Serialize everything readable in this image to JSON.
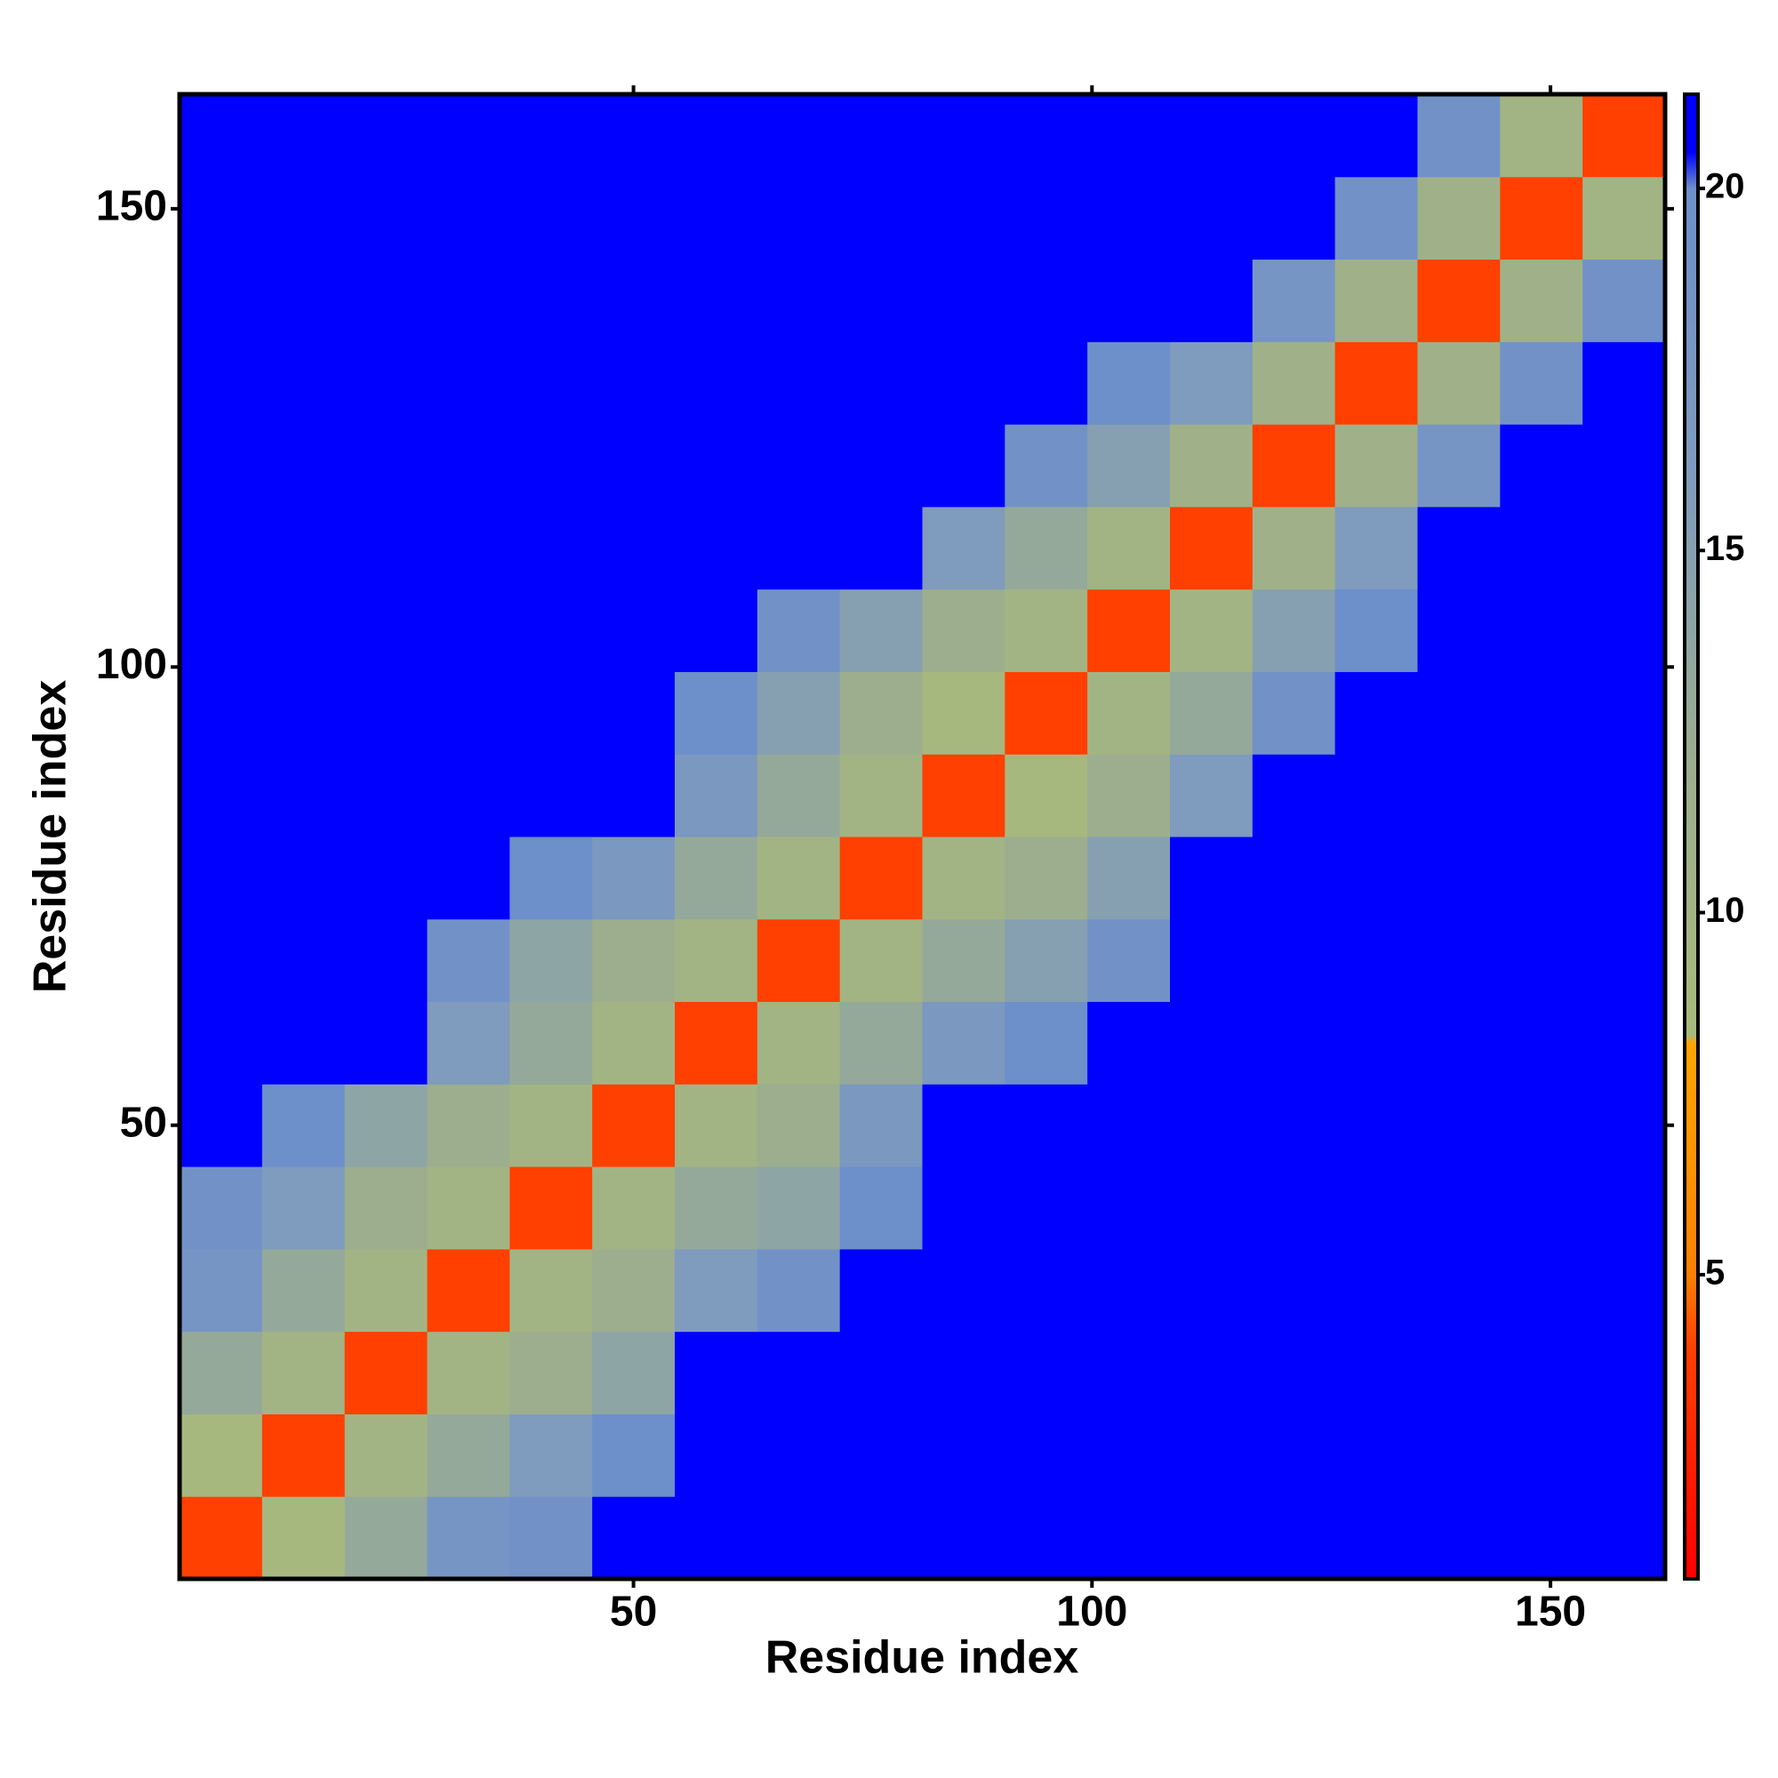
{
  "chart_data": {
    "type": "heatmap",
    "xlabel": "Residue index",
    "ylabel": "Residue index",
    "xbins": [
      0.5,
      9.5,
      18.5,
      27.5,
      36.5,
      45.5,
      54.5,
      63.5,
      72.5,
      81.5,
      90.5,
      99.5,
      108.5,
      117.5,
      126.5,
      135.5,
      144.5,
      153.5,
      162.5
    ],
    "ybins": [
      0.5,
      9.5,
      18.5,
      27.5,
      36.5,
      45.5,
      54.5,
      63.5,
      72.5,
      81.5,
      90.5,
      99.5,
      108.5,
      117.5,
      126.5,
      135.5,
      144.5,
      153.5,
      162.5
    ],
    "z": [
      [
        4,
        9,
        13,
        18,
        19,
        21,
        21,
        21,
        21,
        21,
        21,
        21,
        21,
        21,
        21,
        21,
        21,
        21
      ],
      [
        9,
        4,
        10,
        13,
        16,
        20,
        21,
        21,
        21,
        21,
        21,
        21,
        21,
        21,
        21,
        21,
        21,
        21
      ],
      [
        13,
        10,
        4,
        10,
        12,
        14,
        21,
        21,
        21,
        21,
        21,
        21,
        21,
        21,
        21,
        21,
        21,
        21
      ],
      [
        18,
        13,
        10,
        4,
        10,
        12,
        16,
        19,
        21,
        21,
        21,
        21,
        21,
        21,
        21,
        21,
        21,
        21
      ],
      [
        19,
        16,
        12,
        10,
        4,
        10,
        13,
        14,
        20,
        21,
        21,
        21,
        21,
        21,
        21,
        21,
        21,
        21
      ],
      [
        21,
        20,
        14,
        12,
        10,
        4,
        10,
        12,
        17,
        21,
        21,
        21,
        21,
        21,
        21,
        21,
        21,
        21
      ],
      [
        21,
        21,
        21,
        16,
        13,
        10,
        4,
        10,
        13,
        17,
        20,
        21,
        21,
        21,
        21,
        21,
        21,
        21
      ],
      [
        21,
        21,
        21,
        19,
        14,
        12,
        10,
        4,
        10,
        13,
        15,
        19,
        21,
        21,
        21,
        21,
        21,
        21
      ],
      [
        21,
        21,
        21,
        21,
        20,
        17,
        13,
        10,
        4,
        10,
        12,
        15,
        21,
        21,
        21,
        21,
        21,
        21
      ],
      [
        21,
        21,
        21,
        21,
        21,
        21,
        17,
        13,
        10,
        4,
        9,
        12,
        16,
        21,
        21,
        21,
        21,
        21
      ],
      [
        21,
        21,
        21,
        21,
        21,
        21,
        20,
        15,
        12,
        9,
        4,
        10,
        13,
        19,
        21,
        21,
        21,
        21
      ],
      [
        21,
        21,
        21,
        21,
        21,
        21,
        21,
        19,
        15,
        12,
        10,
        4,
        10,
        15,
        20,
        21,
        21,
        21
      ],
      [
        21,
        21,
        21,
        21,
        21,
        21,
        21,
        21,
        21,
        16,
        13,
        10,
        4,
        11,
        16,
        21,
        21,
        21
      ],
      [
        21,
        21,
        21,
        21,
        21,
        21,
        21,
        21,
        21,
        21,
        19,
        15,
        11,
        4,
        11,
        18,
        21,
        21
      ],
      [
        21,
        21,
        21,
        21,
        21,
        21,
        21,
        21,
        21,
        21,
        21,
        20,
        16,
        11,
        4,
        11,
        19,
        21
      ],
      [
        21,
        21,
        21,
        21,
        21,
        21,
        21,
        21,
        21,
        21,
        21,
        21,
        21,
        18,
        11,
        4,
        11,
        19
      ],
      [
        21,
        21,
        21,
        21,
        21,
        21,
        21,
        21,
        21,
        21,
        21,
        21,
        21,
        21,
        19,
        11,
        4,
        10
      ],
      [
        21,
        21,
        21,
        21,
        21,
        21,
        21,
        21,
        21,
        21,
        21,
        21,
        21,
        21,
        21,
        19,
        10,
        4
      ]
    ],
    "xlim": [
      0.5,
      162.5
    ],
    "ylim": [
      0.5,
      162.5
    ],
    "xticks": [
      50,
      100,
      150
    ],
    "yticks": [
      50,
      100,
      150
    ],
    "colorbar_lim": [
      0.8,
      21.3
    ],
    "colorbar_ticks": [
      5,
      10,
      15,
      20
    ],
    "colorscale": [
      {
        "value": 0.8,
        "color": "#ff0000"
      },
      {
        "value": 4,
        "color": "#ff4000"
      },
      {
        "value": 5,
        "color": "#ff8000"
      },
      {
        "value": 8.2,
        "color": "#ffa500"
      },
      {
        "value": 8.3,
        "color": "#a9ba7c"
      },
      {
        "value": 12,
        "color": "#9cae8e"
      },
      {
        "value": 16,
        "color": "#7f9bbd"
      },
      {
        "value": 20,
        "color": "#6d8fca"
      },
      {
        "value": 20.5,
        "color": "#0000ff"
      },
      {
        "value": 21.3,
        "color": "#0000ff"
      }
    ]
  }
}
